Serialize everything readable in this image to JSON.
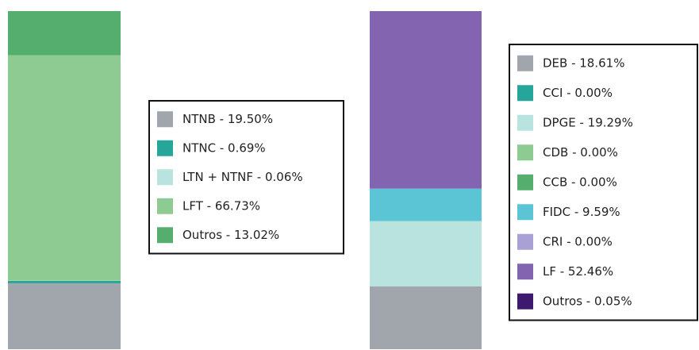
{
  "chart_data": [
    {
      "type": "bar",
      "stacked": true,
      "ylim": [
        0,
        100
      ],
      "series": [
        {
          "name": "NTNB - 19.50%",
          "color": "#a0a6ab",
          "values": [
            19.5
          ]
        },
        {
          "name": "NTNC - 0.69%",
          "color": "#26a69a",
          "values": [
            0.69
          ]
        },
        {
          "name": "LTN + NTNF - 0.06%",
          "color": "#b9e3df",
          "values": [
            0.06
          ]
        },
        {
          "name": "LFT - 66.73%",
          "color": "#8ecb92",
          "values": [
            66.73
          ]
        },
        {
          "name": "Outros - 13.02%",
          "color": "#55ad6e",
          "values": [
            13.02
          ]
        }
      ]
    },
    {
      "type": "bar",
      "stacked": true,
      "ylim": [
        0,
        100
      ],
      "series": [
        {
          "name": "DEB - 18.61%",
          "color": "#a0a6ab",
          "values": [
            18.61
          ]
        },
        {
          "name": "CCI - 0.00%",
          "color": "#26a69a",
          "values": [
            0.0
          ]
        },
        {
          "name": "DPGE - 19.29%",
          "color": "#b9e3df",
          "values": [
            19.29
          ]
        },
        {
          "name": "CDB - 0.00%",
          "color": "#8ecb92",
          "values": [
            0.0
          ]
        },
        {
          "name": "CCB - 0.00%",
          "color": "#55ad6e",
          "values": [
            0.0
          ]
        },
        {
          "name": "FIDC - 9.59%",
          "color": "#5bc5d6",
          "values": [
            9.59
          ]
        },
        {
          "name": "CRI - 0.00%",
          "color": "#a9a1d3",
          "values": [
            0.0
          ]
        },
        {
          "name": "LF - 52.46%",
          "color": "#8364b0",
          "values": [
            52.46
          ]
        },
        {
          "name": "Outros - 0.05%",
          "color": "#3d1a6e",
          "values": [
            0.05
          ]
        }
      ]
    }
  ]
}
